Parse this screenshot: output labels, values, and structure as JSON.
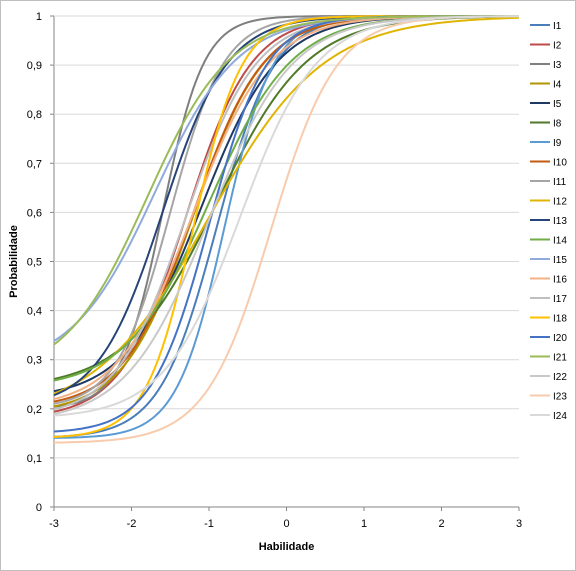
{
  "chart_data": {
    "type": "line",
    "title": "",
    "xlabel": "Habilidade",
    "ylabel": "Probabilidade",
    "xlim": [
      -3,
      3
    ],
    "ylim": [
      0,
      1
    ],
    "x_ticks": [
      "-3",
      "-2",
      "-1",
      "0",
      "1",
      "2",
      "3"
    ],
    "y_ticks": [
      "0",
      "0,1",
      "0,2",
      "0,3",
      "0,4",
      "0,5",
      "0,6",
      "0,7",
      "0,8",
      "0,9",
      "1"
    ],
    "grid": "horizontal",
    "legend_position": "right",
    "model": "3PL logistic curve (a: discrimination, b: difficulty, c: guessing)",
    "series": [
      {
        "name": "I1",
        "color": "#4a7ebb",
        "a": 1.6,
        "b": -0.9,
        "c": 0.14
      },
      {
        "name": "I2",
        "color": "#be4b48",
        "a": 1.4,
        "b": -1.3,
        "c": 0.18
      },
      {
        "name": "I3",
        "color": "#7f7f7f",
        "a": 2.2,
        "b": -1.6,
        "c": 0.2
      },
      {
        "name": "I4",
        "color": "#b29600",
        "a": 1.3,
        "b": -1.2,
        "c": 0.19
      },
      {
        "name": "I5",
        "color": "#1f3864",
        "a": 1.2,
        "b": -1.1,
        "c": 0.22
      },
      {
        "name": "I8",
        "color": "#4f7a28",
        "a": 1.0,
        "b": -0.9,
        "c": 0.24
      },
      {
        "name": "I9",
        "color": "#5b9bd5",
        "a": 1.9,
        "b": -0.8,
        "c": 0.14
      },
      {
        "name": "I10",
        "color": "#c55a11",
        "a": 1.3,
        "b": -1.2,
        "c": 0.2
      },
      {
        "name": "I11",
        "color": "#a5a5a5",
        "a": 1.7,
        "b": -1.5,
        "c": 0.2
      },
      {
        "name": "I12",
        "color": "#e0b400",
        "a": 0.8,
        "b": -1.0,
        "c": 0.18
      },
      {
        "name": "I13",
        "color": "#264478",
        "a": 1.4,
        "b": -1.6,
        "c": 0.2
      },
      {
        "name": "I14",
        "color": "#70ad47",
        "a": 1.1,
        "b": -1.0,
        "c": 0.24
      },
      {
        "name": "I15",
        "color": "#8faadc",
        "a": 1.1,
        "b": -1.7,
        "c": 0.28
      },
      {
        "name": "I16",
        "color": "#f4b183",
        "a": 1.2,
        "b": -1.2,
        "c": 0.2
      },
      {
        "name": "I17",
        "color": "#bfbfbf",
        "a": 1.3,
        "b": -1.3,
        "c": 0.18
      },
      {
        "name": "I18",
        "color": "#ffc000",
        "a": 1.9,
        "b": -1.2,
        "c": 0.14
      },
      {
        "name": "I20",
        "color": "#4472c4",
        "a": 1.6,
        "b": -1.0,
        "c": 0.15
      },
      {
        "name": "I21",
        "color": "#9bbb59",
        "a": 1.1,
        "b": -1.8,
        "c": 0.26
      },
      {
        "name": "I22",
        "color": "#c9c9c9",
        "a": 1.1,
        "b": -1.0,
        "c": 0.17
      },
      {
        "name": "I23",
        "color": "#f8cbad",
        "a": 1.4,
        "b": -0.2,
        "c": 0.13
      },
      {
        "name": "I24",
        "color": "#d9d9d9",
        "a": 1.2,
        "b": -0.6,
        "c": 0.18
      }
    ]
  }
}
